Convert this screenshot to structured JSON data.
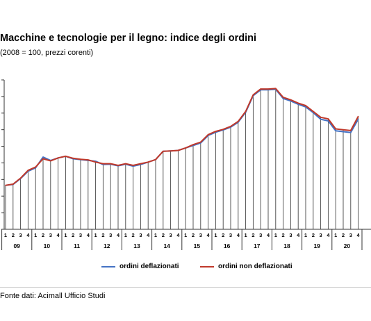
{
  "chart_data": {
    "type": "line",
    "title": "Macchine e tecnologie per il legno: indice degli ordini",
    "subtitle": "(2008 = 100, prezzi corenti)",
    "xlabel": "",
    "ylabel": "",
    "quarter_labels": [
      "1",
      "2",
      "3",
      "4"
    ],
    "years": [
      "09",
      "10",
      "11",
      "12",
      "13",
      "14",
      "15",
      "16",
      "17",
      "18",
      "19",
      "20"
    ],
    "x": [
      "09-1",
      "09-2",
      "09-3",
      "09-4",
      "10-1",
      "10-2",
      "10-3",
      "10-4",
      "11-1",
      "11-2",
      "11-3",
      "11-4",
      "12-1",
      "12-2",
      "12-3",
      "12-4",
      "13-1",
      "13-2",
      "13-3",
      "13-4",
      "14-1",
      "14-2",
      "14-3",
      "14-4",
      "15-1",
      "15-2",
      "15-3",
      "15-4",
      "16-1",
      "16-2",
      "16-3",
      "16-4",
      "17-1",
      "17-2",
      "17-3",
      "17-4",
      "18-1",
      "18-2",
      "18-3",
      "18-4",
      "19-1",
      "19-2",
      "19-3",
      "19-4",
      "20-1",
      "20-2",
      "20-3",
      "20-4"
    ],
    "ylim": [
      0,
      9
    ],
    "grid": false,
    "legend_position": "bottom",
    "series": [
      {
        "name": "ordini deflazionati",
        "color": "#4472c4",
        "values": [
          2.65,
          2.7,
          3.05,
          3.5,
          3.7,
          4.35,
          4.15,
          4.3,
          4.4,
          4.25,
          4.2,
          4.15,
          4.1,
          3.9,
          3.92,
          3.82,
          3.92,
          3.8,
          3.9,
          4.05,
          4.2,
          4.7,
          4.72,
          4.75,
          4.9,
          5.05,
          5.2,
          5.65,
          5.85,
          5.98,
          6.15,
          6.45,
          7.05,
          8.05,
          8.4,
          8.4,
          8.43,
          7.88,
          7.73,
          7.53,
          7.37,
          7.03,
          6.63,
          6.53,
          5.93,
          5.88,
          5.83,
          6.63
        ]
      },
      {
        "name": "ordini non deflazionati",
        "color": "#c0392b",
        "values": [
          2.65,
          2.72,
          3.08,
          3.55,
          3.75,
          4.25,
          4.12,
          4.3,
          4.4,
          4.28,
          4.22,
          4.18,
          4.05,
          3.95,
          3.95,
          3.85,
          3.95,
          3.85,
          3.95,
          4.05,
          4.2,
          4.7,
          4.72,
          4.75,
          4.9,
          5.1,
          5.25,
          5.7,
          5.9,
          6.02,
          6.2,
          6.5,
          7.1,
          8.1,
          8.45,
          8.45,
          8.48,
          7.95,
          7.8,
          7.6,
          7.45,
          7.1,
          6.75,
          6.65,
          6.05,
          6.0,
          5.95,
          6.8
        ]
      }
    ]
  },
  "source": "Fonte dati: Acimall Ufficio Studi"
}
